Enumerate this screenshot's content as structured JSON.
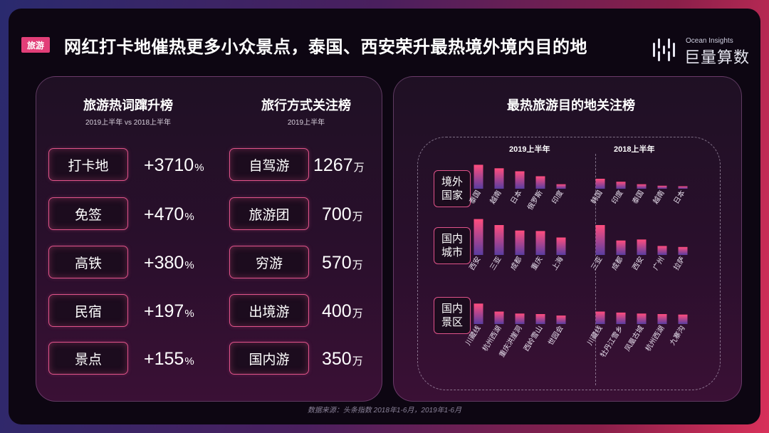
{
  "header": {
    "tag": "旅游",
    "title": "网红打卡地催热更多小众景点，泰国、西安荣升最热境外境内目的地",
    "logo_sub": "Ocean Insights",
    "logo_main": "巨量算数"
  },
  "left": {
    "rise_title": "旅游热词蹿升榜",
    "rise_sub": "2019上半年 vs 2018上半年",
    "rise": [
      {
        "label": "打卡地",
        "value": "+3710",
        "unit": "%"
      },
      {
        "label": "免签",
        "value": "+470",
        "unit": "%"
      },
      {
        "label": "高铁",
        "value": "+380",
        "unit": "%"
      },
      {
        "label": "民宿",
        "value": "+197",
        "unit": "%"
      },
      {
        "label": "景点",
        "value": "+155",
        "unit": "%"
      }
    ],
    "mode_title": "旅行方式关注榜",
    "mode_sub": "2019上半年",
    "mode": [
      {
        "label": "自驾游",
        "value": "1267",
        "unit": "万"
      },
      {
        "label": "旅游团",
        "value": "700",
        "unit": "万"
      },
      {
        "label": "穷游",
        "value": "570",
        "unit": "万"
      },
      {
        "label": "出境游",
        "value": "400",
        "unit": "万"
      },
      {
        "label": "国内游",
        "value": "350",
        "unit": "万"
      }
    ]
  },
  "right": {
    "title": "最热旅游目的地关注榜",
    "periods": [
      "2019上半年",
      "2018上半年"
    ],
    "rows": [
      "境外国家",
      "国内城市",
      "国内景区"
    ]
  },
  "chart_data": {
    "type": "bar",
    "title": "最热旅游目的地关注榜",
    "groups": [
      {
        "row": "境外国家",
        "period": "2019上半年",
        "categories": [
          "泰国",
          "越南",
          "日本",
          "俄罗斯",
          "印度"
        ],
        "values": [
          48,
          41,
          35,
          25,
          9
        ]
      },
      {
        "row": "境外国家",
        "period": "2018上半年",
        "categories": [
          "韩国",
          "印度",
          "泰国",
          "越南",
          "日本"
        ],
        "values": [
          20,
          14,
          9,
          6,
          5
        ]
      },
      {
        "row": "国内城市",
        "period": "2019上半年",
        "categories": [
          "西安",
          "三亚",
          "成都",
          "重庆",
          "上海"
        ],
        "values": [
          72,
          60,
          49,
          48,
          35
        ]
      },
      {
        "row": "国内城市",
        "period": "2018上半年",
        "categories": [
          "三亚",
          "成都",
          "西安",
          "广州",
          "拉萨"
        ],
        "values": [
          60,
          29,
          31,
          18,
          16
        ]
      },
      {
        "row": "国内景区",
        "period": "2019上半年",
        "categories": [
          "川藏线",
          "杭州西湖",
          "重庆洪崖洞",
          "西岭雪山",
          "世园会"
        ],
        "values": [
          41,
          25,
          21,
          20,
          17
        ]
      },
      {
        "row": "国内景区",
        "period": "2018上半年",
        "categories": [
          "川藏线",
          "牡丹江雪乡",
          "凤凰古城",
          "杭州西湖",
          "九寨沟"
        ],
        "values": [
          25,
          23,
          21,
          20,
          19
        ]
      }
    ]
  },
  "footer": {
    "source": "数据来源：头条指数 2018年1-6月，2019年1-6月"
  }
}
